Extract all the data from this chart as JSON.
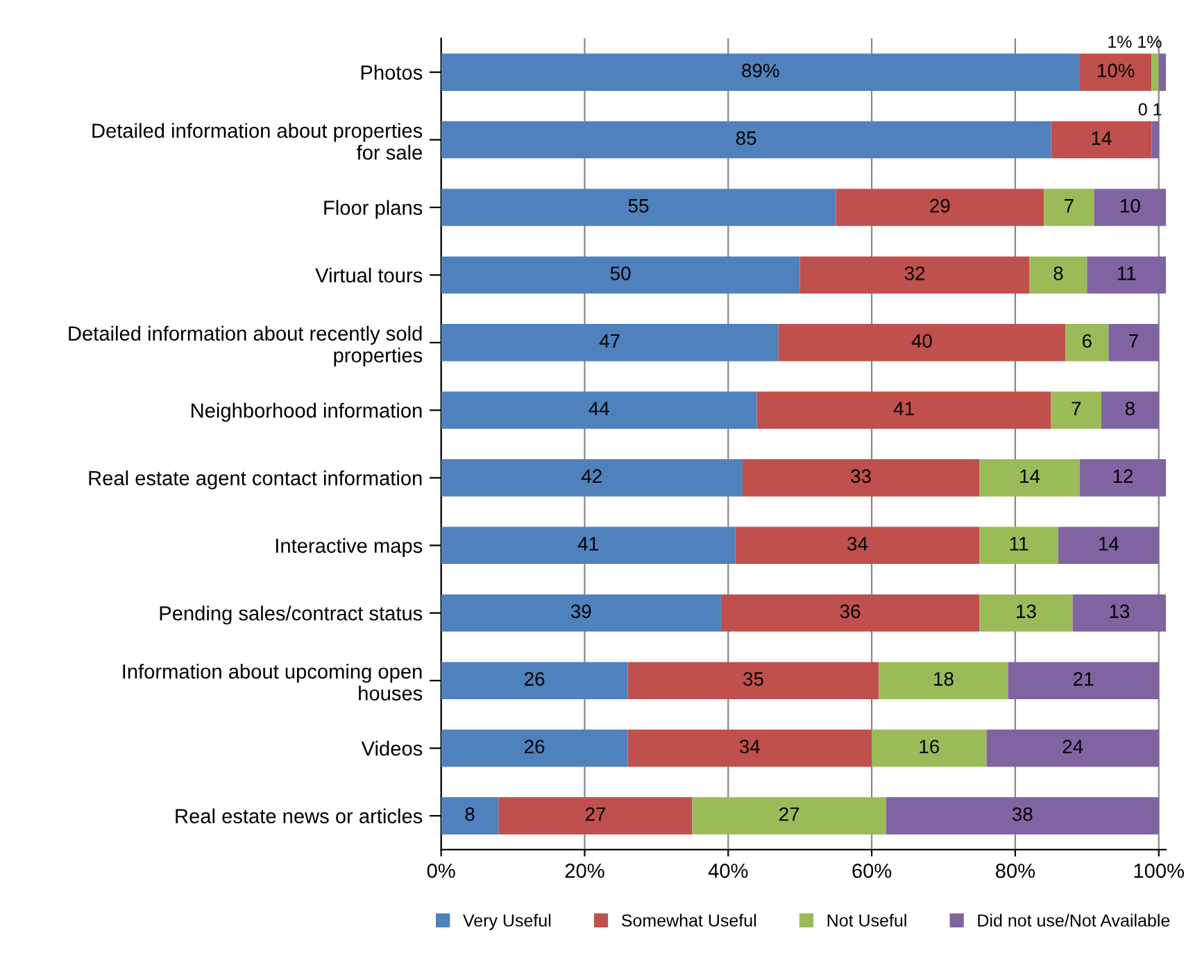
{
  "chart_data": {
    "type": "bar",
    "orientation": "horizontal",
    "stacked": true,
    "categories": [
      "Photos",
      "Detailed information about properties\nfor sale",
      "Floor plans",
      "Virtual tours",
      "Detailed information about recently sold\nproperties",
      "Neighborhood information",
      "Real estate agent contact information",
      "Interactive maps",
      "Pending sales/contract status",
      "Information about upcoming open\nhouses",
      "Videos",
      "Real estate news or articles"
    ],
    "series": [
      {
        "name": "Very Useful",
        "color": "#4f81bd",
        "values": [
          89,
          85,
          55,
          50,
          47,
          44,
          42,
          41,
          39,
          26,
          26,
          8
        ],
        "value_labels": [
          "89%",
          "85",
          "55",
          "50",
          "47",
          "44",
          "42",
          "41",
          "39",
          "26",
          "26",
          "8"
        ]
      },
      {
        "name": "Somewhat Useful",
        "color": "#c0504d",
        "values": [
          10,
          14,
          29,
          32,
          40,
          41,
          33,
          34,
          36,
          35,
          34,
          27
        ],
        "value_labels": [
          "10%",
          "14",
          "29",
          "32",
          "40",
          "41",
          "33",
          "34",
          "36",
          "35",
          "34",
          "27"
        ]
      },
      {
        "name": "Not Useful",
        "color": "#9bbb59",
        "values": [
          1,
          0,
          7,
          8,
          6,
          7,
          14,
          11,
          13,
          18,
          16,
          27
        ],
        "value_labels": [
          "1%",
          "0",
          "7",
          "8",
          "6",
          "7",
          "14",
          "11",
          "13",
          "18",
          "16",
          "27"
        ]
      },
      {
        "name": "Did not use/Not Available",
        "color": "#8064a2",
        "values": [
          1,
          1,
          10,
          11,
          7,
          8,
          12,
          14,
          13,
          21,
          24,
          38
        ],
        "value_labels": [
          "1%",
          "1",
          "10",
          "11",
          "7",
          "8",
          "12",
          "14",
          "13",
          "21",
          "24",
          "38"
        ]
      }
    ],
    "xlim": [
      0,
      101
    ],
    "xticks": [
      {
        "value": 0,
        "label": "0%"
      },
      {
        "value": 20,
        "label": "20%"
      },
      {
        "value": 40,
        "label": "40%"
      },
      {
        "value": 60,
        "label": "60%"
      },
      {
        "value": 80,
        "label": "80%"
      },
      {
        "value": 100,
        "label": "100%"
      }
    ],
    "grid": "x",
    "legend": "bottom"
  }
}
